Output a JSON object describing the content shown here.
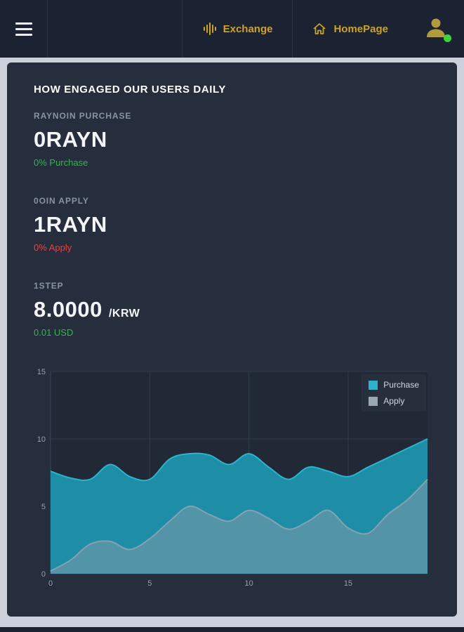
{
  "header": {
    "nav": [
      {
        "label": "Exchange",
        "icon": "equalizer-icon"
      },
      {
        "label": "HomePage",
        "icon": "home-icon"
      }
    ],
    "accent_color": "#cda226",
    "user": {
      "status_color": "#3bd43b"
    }
  },
  "main": {
    "title": "HOW ENGAGED OUR USERS DAILY",
    "stats": [
      {
        "label": "RAYNOIN PURCHASE",
        "value": "0RAYN",
        "unit": "",
        "sub": "0% Purchase",
        "sub_color": "#2fb84c"
      },
      {
        "label": "0OIN APPLY",
        "value": "1RAYN",
        "unit": "",
        "sub": "0% Apply",
        "sub_color": "#e04545"
      },
      {
        "label": "1STEP",
        "value": "8.0000",
        "unit": "/KRW",
        "sub": "0.01 USD",
        "sub_color": "#2fb84c"
      }
    ]
  },
  "chart_data": {
    "type": "area",
    "title": "",
    "xlabel": "",
    "ylabel": "",
    "x": [
      0,
      1,
      2,
      3,
      4,
      5,
      6,
      7,
      8,
      9,
      10,
      11,
      12,
      13,
      14,
      15,
      16,
      17,
      18,
      19
    ],
    "series": [
      {
        "name": "Purchase",
        "color": "#2bb3cf",
        "fill": "#1d93ad",
        "values": [
          7.6,
          7.1,
          7.0,
          8.1,
          7.2,
          7.0,
          8.5,
          8.9,
          8.8,
          8.1,
          8.9,
          7.9,
          7.0,
          7.9,
          7.6,
          7.2,
          7.9,
          8.6,
          9.3,
          10.0
        ]
      },
      {
        "name": "Apply",
        "color": "#9aa8b6",
        "fill": "#8a99a9",
        "values": [
          0.2,
          1.0,
          2.2,
          2.4,
          1.8,
          2.6,
          3.9,
          5.0,
          4.4,
          3.9,
          4.7,
          4.1,
          3.3,
          3.9,
          4.7,
          3.4,
          3.0,
          4.4,
          5.5,
          7.0
        ]
      }
    ],
    "xlim": [
      0,
      19
    ],
    "ylim": [
      0,
      15
    ],
    "xticks": [
      0,
      5,
      10,
      15
    ],
    "yticks": [
      0,
      5,
      10,
      15
    ],
    "grid": true,
    "legend_position": "top-right"
  }
}
